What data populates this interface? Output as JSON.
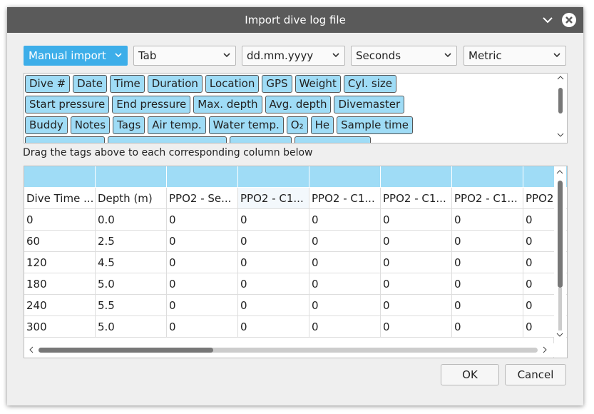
{
  "dialog": {
    "title": "Import dive log file"
  },
  "selects": [
    "Manual import",
    "Tab",
    "dd.mm.yyyy",
    "Seconds",
    "Metric"
  ],
  "tags": [
    [
      "Dive #",
      "Date",
      "Time",
      "Duration",
      "Location",
      "GPS",
      "Weight",
      "Cyl. size"
    ],
    [
      "Start pressure",
      "End pressure",
      "Max. depth",
      "Avg. depth",
      "Divemaster"
    ],
    [
      "Buddy",
      "Notes",
      "Tags",
      "Air temp.",
      "Water temp.",
      "O₂",
      "He",
      "Sample time"
    ]
  ],
  "instruction": "Drag the tags above to each corresponding column below",
  "table": {
    "headers": [
      "Dive Time ...",
      "Depth (m)",
      "PPO2 - Se...",
      "PPO2 - C1...",
      "PPO2 - C1...",
      "PPO2 - C1...",
      "PPO2 - C1...",
      "PPO2"
    ],
    "rows": [
      [
        "0",
        "0.0",
        "0",
        "0",
        "0",
        "0",
        "0",
        "0"
      ],
      [
        "60",
        "2.5",
        "0",
        "0",
        "0",
        "0",
        "0",
        "0"
      ],
      [
        "120",
        "4.5",
        "0",
        "0",
        "0",
        "0",
        "0",
        "0"
      ],
      [
        "180",
        "5.0",
        "0",
        "0",
        "0",
        "0",
        "0",
        "0"
      ],
      [
        "240",
        "5.5",
        "0",
        "0",
        "0",
        "0",
        "0",
        "0"
      ],
      [
        "300",
        "5.0",
        "0",
        "0",
        "0",
        "0",
        "0",
        "0"
      ]
    ]
  },
  "buttons": [
    "OK",
    "Cancel"
  ]
}
